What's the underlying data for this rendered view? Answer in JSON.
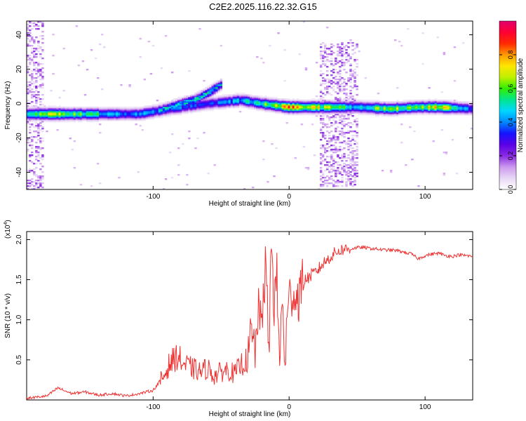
{
  "title": "C2E2.2025.116.22.32.G15",
  "chart_data": [
    {
      "type": "heatmap",
      "xlabel": "Height of straight line (km)",
      "ylabel": "Frequency (Hz)",
      "xlim": [
        -193,
        135
      ],
      "ylim": [
        -50,
        48
      ],
      "x_ticks": [
        -100,
        0,
        100
      ],
      "x_tick_labels": [
        "-100",
        "0",
        "100"
      ],
      "y_ticks": [
        -40,
        -20,
        0,
        20,
        40
      ],
      "y_tick_labels": [
        "-40",
        "-20",
        "0",
        "20",
        "40"
      ],
      "colorbar": {
        "label": "Normalized spectral amplitude",
        "range": [
          0,
          1
        ],
        "ticks": [
          0.0,
          0.2,
          0.4,
          0.6,
          0.8
        ],
        "tick_labels": [
          "0.0",
          "0.2",
          "0.4",
          "0.6",
          "0.8"
        ],
        "colors": [
          "#ffffff",
          "#e8d8f5",
          "#cc99ee",
          "#8a2be2",
          "#5a00e6",
          "#1414ff",
          "#0088ff",
          "#00d8ff",
          "#00e68c",
          "#33ee00",
          "#bff000",
          "#ffe600",
          "#ff9900",
          "#ff2a00",
          "#ff0033",
          "#e0006e"
        ]
      },
      "ridge": [
        {
          "x": -193,
          "f": -6,
          "amp": 0.45
        },
        {
          "x": -170,
          "f": -6,
          "amp": 0.7
        },
        {
          "x": -150,
          "f": -6,
          "amp": 0.55
        },
        {
          "x": -130,
          "f": -6,
          "amp": 0.45
        },
        {
          "x": -110,
          "f": -6,
          "amp": 0.4
        },
        {
          "x": -95,
          "f": -4,
          "amp": 0.4
        },
        {
          "x": -60,
          "f": 0,
          "amp": 0.35
        },
        {
          "x": -35,
          "f": 2,
          "amp": 0.45
        },
        {
          "x": -20,
          "f": 0,
          "amp": 0.55
        },
        {
          "x": 0,
          "f": -2,
          "amp": 0.8
        },
        {
          "x": 22,
          "f": -2,
          "amp": 0.7
        },
        {
          "x": 50,
          "f": -2,
          "amp": 0.45
        },
        {
          "x": 75,
          "f": -3,
          "amp": 0.7
        },
        {
          "x": 95,
          "f": -2,
          "amp": 0.55
        },
        {
          "x": 110,
          "f": -2,
          "amp": 0.75
        },
        {
          "x": 135,
          "f": -3,
          "amp": 0.3
        }
      ],
      "upper_branch": [
        {
          "x": -95,
          "f": -4
        },
        {
          "x": -80,
          "f": 0
        },
        {
          "x": -70,
          "f": 2
        },
        {
          "x": -60,
          "f": 6
        },
        {
          "x": -50,
          "f": 11
        }
      ],
      "noise_bands": [
        {
          "x_start": 23,
          "x_end": 50,
          "f_min": -48,
          "f_max": 36
        },
        {
          "x_start": -193,
          "x_end": -180,
          "f_min": -50,
          "f_max": 48
        }
      ]
    },
    {
      "type": "line",
      "xlabel": "Height of straight line (km)",
      "ylabel": "SNR (10 * v/v)",
      "multiplier_label": "(x10",
      "multiplier_exponent": "4",
      "multiplier_close": ")",
      "xlim": [
        -193,
        135
      ],
      "ylim": [
        0,
        2.1
      ],
      "x_ticks": [
        -100,
        0,
        100
      ],
      "x_tick_labels": [
        "-100",
        "0",
        "100"
      ],
      "y_ticks": [
        0.5,
        1.0,
        1.5,
        2.0
      ],
      "y_tick_labels": [
        "0.5",
        "1.0",
        "1.5",
        "2.0"
      ],
      "series": [
        {
          "color": "#ee3333",
          "x": [
            -193,
            -178,
            -170,
            -160,
            -150,
            -140,
            -130,
            -120,
            -110,
            -100,
            -92,
            -88,
            -82,
            -78,
            -72,
            -65,
            -60,
            -55,
            -50,
            -45,
            -40,
            -35,
            -30,
            -28,
            -25,
            -23,
            -21,
            -19,
            -17,
            -15,
            -13,
            -11,
            -9,
            -7,
            -5,
            -3,
            -1,
            1,
            3,
            5,
            8,
            12,
            16,
            20,
            25,
            30,
            35,
            40,
            45,
            50,
            55,
            60,
            65,
            70,
            75,
            80,
            85,
            90,
            95,
            100,
            105,
            110,
            115,
            120,
            125,
            130,
            135
          ],
          "values": [
            0.02,
            0.05,
            0.15,
            0.08,
            0.1,
            0.06,
            0.08,
            0.05,
            0.08,
            0.12,
            0.3,
            0.45,
            0.55,
            0.45,
            0.4,
            0.35,
            0.4,
            0.3,
            0.35,
            0.38,
            0.32,
            0.45,
            0.5,
            0.8,
            0.6,
            1.1,
            0.9,
            1.3,
            1.7,
            0.5,
            2.0,
            1.2,
            1.5,
            0.5,
            1.2,
            0.5,
            1.1,
            1.3,
            1.4,
            1.25,
            1.35,
            1.5,
            1.55,
            1.6,
            1.7,
            1.78,
            1.85,
            1.88,
            1.88,
            1.9,
            1.9,
            1.89,
            1.88,
            1.87,
            1.87,
            1.86,
            1.84,
            1.82,
            1.76,
            1.8,
            1.82,
            1.83,
            1.8,
            1.79,
            1.81,
            1.8,
            1.79
          ]
        }
      ]
    }
  ]
}
